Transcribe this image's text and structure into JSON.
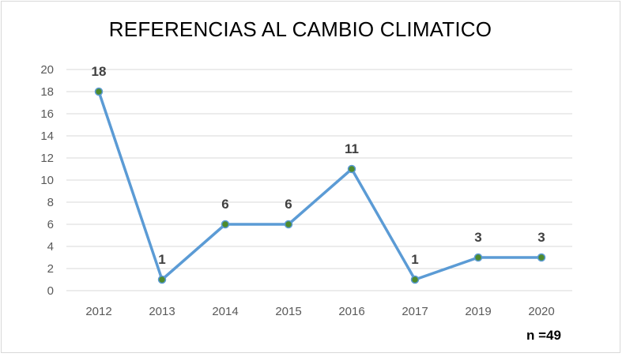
{
  "chart_data": {
    "type": "line",
    "title": "REFERENCIAS AL CAMBIO CLIMATICO",
    "categories": [
      "2012",
      "2013",
      "2014",
      "2015",
      "2016",
      "2017",
      "2019",
      "2020"
    ],
    "values": [
      18,
      1,
      6,
      6,
      11,
      1,
      3,
      3
    ],
    "y_ticks": [
      "0",
      "2",
      "4",
      "6",
      "8",
      "10",
      "12",
      "14",
      "16",
      "18",
      "20"
    ],
    "ylim": [
      0,
      20
    ],
    "xlabel": "",
    "ylabel": "",
    "grid": true,
    "legend": "none",
    "line_color": "#5b9bd5",
    "marker_color": "#4e8a2c",
    "annotation": "n =49"
  }
}
